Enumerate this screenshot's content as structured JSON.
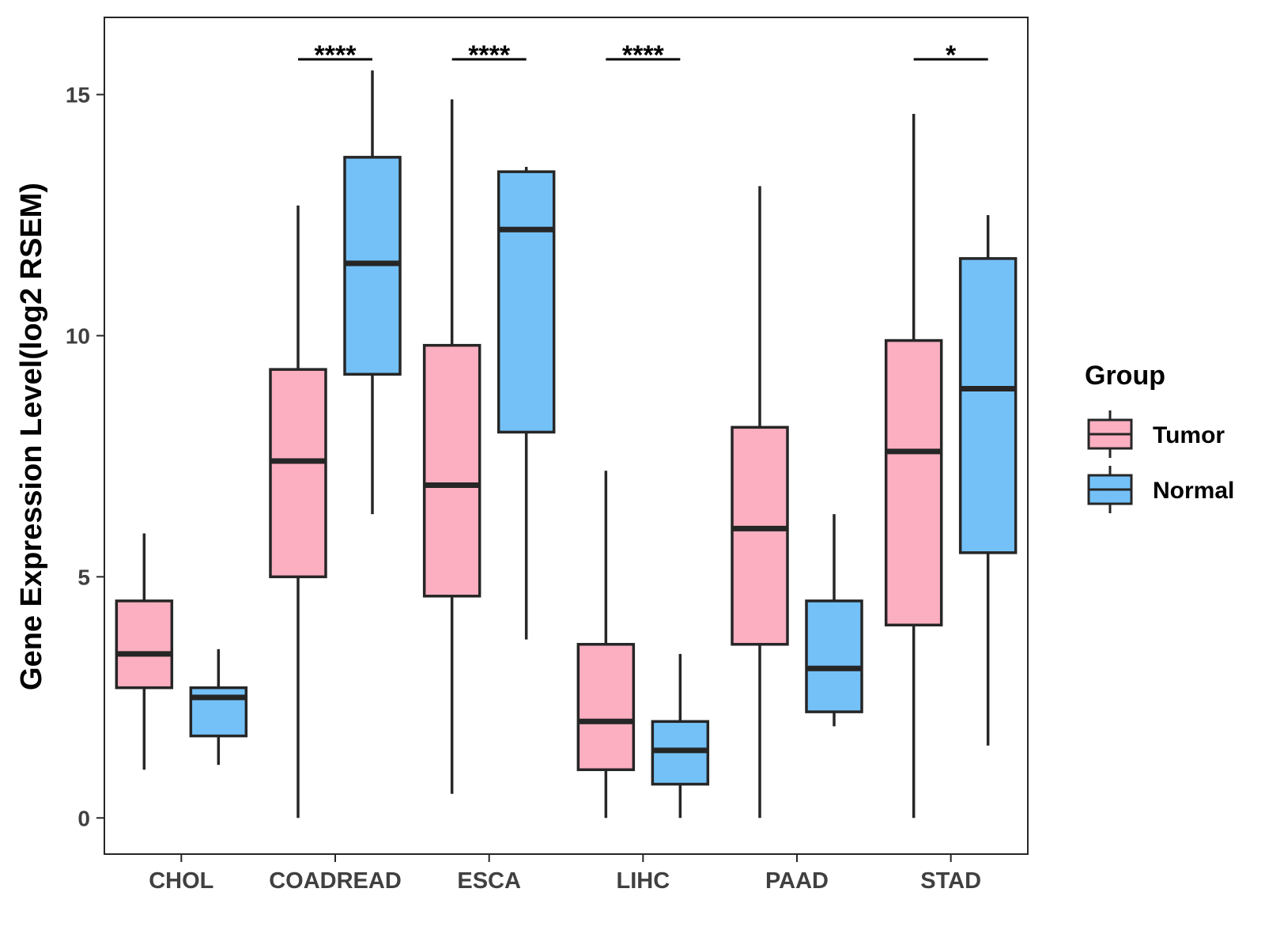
{
  "chart_data": {
    "type": "box",
    "title": "",
    "xlabel": "",
    "ylabel": "Gene Expression Level(log2 RSEM)",
    "ylim": [
      -0.75,
      16.6
    ],
    "yticks": [
      0,
      5,
      10,
      15
    ],
    "grid": false,
    "categories": [
      "CHOL",
      "COADREAD",
      "ESCA",
      "LIHC",
      "PAAD",
      "STAD"
    ],
    "legend": {
      "title": "Group",
      "placement": "right",
      "entries": [
        {
          "name": "Tumor",
          "color": "#FBAFC1"
        },
        {
          "name": "Normal",
          "color": "#74C1F8"
        }
      ]
    },
    "series": [
      {
        "name": "Tumor",
        "color": "#FBAFC1",
        "boxes": [
          {
            "min": 1.0,
            "q1": 2.7,
            "median": 3.4,
            "q3": 4.5,
            "max": 5.9
          },
          {
            "min": 0.0,
            "q1": 5.0,
            "median": 7.4,
            "q3": 9.3,
            "max": 12.7
          },
          {
            "min": 0.5,
            "q1": 4.6,
            "median": 6.9,
            "q3": 9.8,
            "max": 14.9
          },
          {
            "min": 0.0,
            "q1": 1.0,
            "median": 2.0,
            "q3": 3.6,
            "max": 7.2
          },
          {
            "min": 0.0,
            "q1": 3.6,
            "median": 6.0,
            "q3": 8.1,
            "max": 13.1
          },
          {
            "min": 0.0,
            "q1": 4.0,
            "median": 7.6,
            "q3": 9.9,
            "max": 14.6
          }
        ]
      },
      {
        "name": "Normal",
        "color": "#74C1F8",
        "boxes": [
          {
            "min": 1.1,
            "q1": 1.7,
            "median": 2.5,
            "q3": 2.7,
            "max": 3.5
          },
          {
            "min": 6.3,
            "q1": 9.2,
            "median": 11.5,
            "q3": 13.7,
            "max": 15.5
          },
          {
            "min": 3.7,
            "q1": 8.0,
            "median": 12.2,
            "q3": 13.4,
            "max": 13.5
          },
          {
            "min": 0.0,
            "q1": 0.7,
            "median": 1.4,
            "q3": 2.0,
            "max": 3.4
          },
          {
            "min": 1.9,
            "q1": 2.2,
            "median": 3.1,
            "q3": 4.5,
            "max": 6.3
          },
          {
            "min": 1.5,
            "q1": 5.5,
            "median": 8.9,
            "q3": 11.6,
            "max": 12.5
          }
        ]
      }
    ],
    "significance": [
      "",
      "****",
      "****",
      "****",
      "",
      "*"
    ]
  }
}
